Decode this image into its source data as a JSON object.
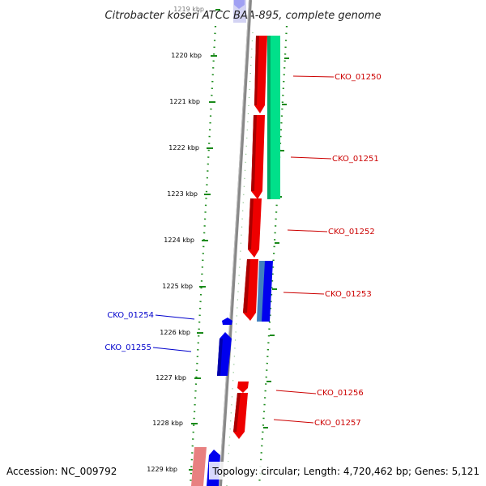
{
  "title": "Citrobacter koseri ATCC BAA-895, complete genome",
  "accession": "Accession: NC_009792",
  "topology": "Topology: circular; Length: 4,720,462 bp; Genes: 5,121",
  "colors": {
    "forward_cds": "#ff0000",
    "reverse_cds": "#0000ff",
    "rna": "#00e08a",
    "backbone": "#888888",
    "ticks": "#1a8a1a",
    "label_red": "#cc0000",
    "label_blue": "#0000cc"
  },
  "ticks": [
    {
      "label": "1219 kbp"
    },
    {
      "label": "1220 kbp"
    },
    {
      "label": "1221 kbp"
    },
    {
      "label": "1222 kbp"
    },
    {
      "label": "1223 kbp"
    },
    {
      "label": "1224 kbp"
    },
    {
      "label": "1225 kbp"
    },
    {
      "label": "1226 kbp"
    },
    {
      "label": "1227 kbp"
    },
    {
      "label": "1228 kbp"
    },
    {
      "label": "1229 kbp"
    }
  ],
  "features": [
    {
      "id": "CKO_01250",
      "strand": "+",
      "color": "red"
    },
    {
      "id": "CKO_01251",
      "strand": "+",
      "color": "red"
    },
    {
      "id": "CKO_01252",
      "strand": "+",
      "color": "red"
    },
    {
      "id": "CKO_01253",
      "strand": "+",
      "color": "red"
    },
    {
      "id": "CKO_01254",
      "strand": "-",
      "color": "blue"
    },
    {
      "id": "CKO_01255",
      "strand": "-",
      "color": "blue"
    },
    {
      "id": "CKO_01256",
      "strand": "+",
      "color": "red"
    },
    {
      "id": "CKO_01257",
      "strand": "+",
      "color": "red"
    }
  ]
}
